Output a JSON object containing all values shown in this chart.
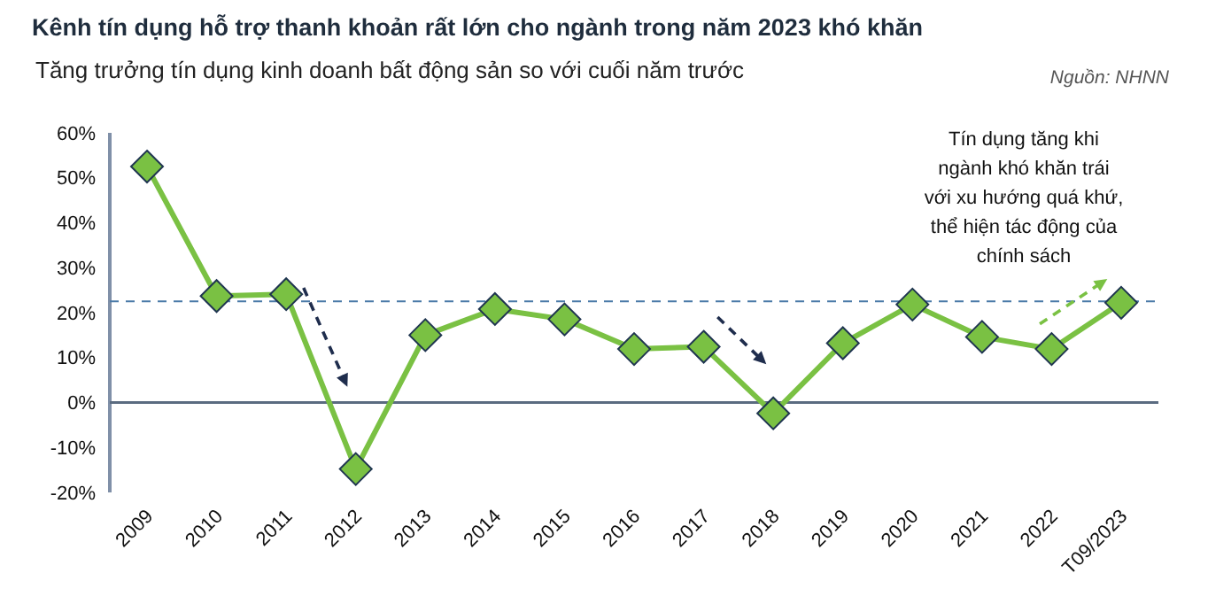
{
  "chart_data": {
    "type": "line",
    "title": "Kênh tín dụng hỗ trợ thanh khoản rất lớn cho ngành trong năm 2023 khó khăn",
    "subtitle": "Tăng trưởng tín dụng kinh doanh bất động sản so với cuối năm trước",
    "annotations": [
      "Nguồn: NHNN",
      "Tín dụng tăng khi ngành khó khăn trái với xu hướng quá khứ, thể hiện tác động của chính sách"
    ],
    "categories": [
      "2009",
      "2010",
      "2011",
      "2012",
      "2013",
      "2014",
      "2015",
      "2016",
      "2017",
      "2018",
      "2019",
      "2020",
      "2021",
      "2022",
      "T09/2023"
    ],
    "series": [
      {
        "color": "#7ac143",
        "values": [
          52.5,
          23.7,
          24.1,
          -14.8,
          15,
          20.8,
          18.5,
          11.9,
          12.4,
          -2.4,
          13.2,
          21.8,
          14.6,
          11.9,
          22.2
        ]
      }
    ],
    "ylim": [
      -20,
      60
    ],
    "yticks": [
      {
        "value": -20,
        "label": "-20%"
      },
      {
        "value": -10,
        "label": "-10%"
      },
      {
        "value": 0,
        "label": "0%"
      },
      {
        "value": 10,
        "label": "10%"
      },
      {
        "value": 20,
        "label": "20%"
      },
      {
        "value": 30,
        "label": "30%"
      },
      {
        "value": 40,
        "label": "40%"
      },
      {
        "value": 50,
        "label": "50%"
      },
      {
        "value": 60,
        "label": "60%"
      }
    ],
    "ref_lines": [
      {
        "axis": "y",
        "value": 22.5,
        "color": "#4a7aa8",
        "line_style": "dashed"
      }
    ],
    "marker": "diamond",
    "line_style": "solid"
  }
}
